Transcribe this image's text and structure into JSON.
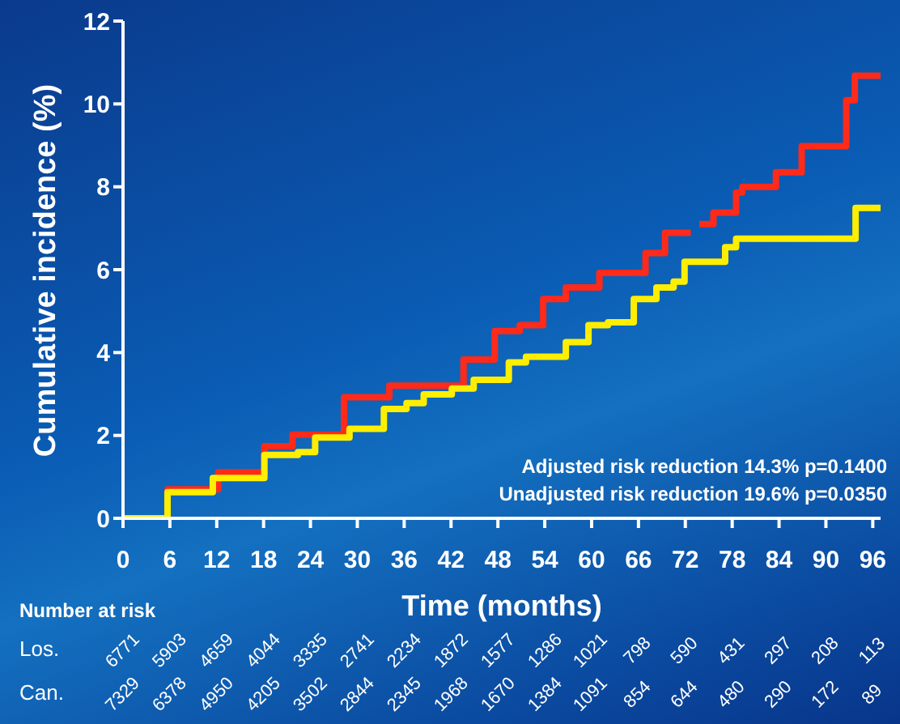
{
  "chart_data": {
    "type": "step",
    "xlabel": "Time (months)",
    "ylabel": "Cumulative incidence (%)",
    "xlim": [
      0,
      97
    ],
    "xticks": [
      0,
      6,
      12,
      18,
      24,
      30,
      36,
      42,
      48,
      54,
      60,
      66,
      72,
      78,
      84,
      90,
      96
    ],
    "ylim": [
      0,
      12
    ],
    "yticks": [
      0,
      2,
      4,
      6,
      8,
      10,
      12
    ],
    "line_style": "solid",
    "marker": "none",
    "series": [
      {
        "color": "#ff2a1a",
        "x": [
          0,
          5.7,
          12.2,
          18.1,
          21.7,
          28.3,
          34.1,
          43.6,
          47.6,
          50.8,
          53.8,
          56.7,
          59.9,
          61.0,
          66.9,
          69.4,
          72.7,
          73.2,
          73.8,
          75.6,
          77.8,
          78.5,
          79.3,
          83.3,
          83.6,
          86.5,
          86.9,
          92.4,
          92.6,
          93.5,
          93.7,
          97
        ],
        "values": [
          0,
          0.7,
          1.11,
          1.74,
          2.02,
          2.92,
          3.2,
          3.83,
          4.52,
          4.66,
          5.29,
          5.57,
          5.57,
          5.92,
          6.4,
          6.89,
          6.89,
          null,
          7.1,
          7.38,
          7.38,
          7.86,
          8.0,
          8.0,
          8.35,
          8.35,
          8.98,
          8.98,
          10.09,
          10.09,
          10.68,
          10.68
        ]
      },
      {
        "color": "#ffee00",
        "x": [
          0,
          5.7,
          11.5,
          18.1,
          22.4,
          24.6,
          29.0,
          33.4,
          36.3,
          38.5,
          42.1,
          44.9,
          47.9,
          49.4,
          51.6,
          53.8,
          56.7,
          59.6,
          62.1,
          65.4,
          68.3,
          70.5,
          71.9,
          75.6,
          77.1,
          78.5,
          93.5,
          93.8,
          97
        ],
        "values": [
          0,
          0.63,
          0.97,
          1.53,
          1.6,
          1.95,
          2.16,
          2.64,
          2.78,
          2.99,
          3.13,
          3.34,
          3.34,
          3.76,
          3.9,
          3.9,
          4.25,
          4.66,
          4.73,
          5.29,
          5.57,
          5.71,
          6.19,
          6.19,
          6.54,
          6.75,
          6.75,
          7.49,
          7.49
        ]
      }
    ],
    "annotations": [
      "Adjusted risk reduction 14.3% p=0.1400",
      "Unadjusted risk reduction 19.6% p=0.0350",
      "Number at risk",
      "Los.",
      "6771",
      "5903",
      "4659",
      "4044",
      "3335",
      "2741",
      "2234",
      "1872",
      "1577",
      "1286",
      "1021",
      "798",
      "590",
      "431",
      "297",
      "208",
      "113",
      "Can.",
      "7329",
      "6378",
      "4950",
      "4205",
      "3502",
      "2844",
      "2345",
      "1968",
      "1670",
      "1384",
      "1091",
      "854",
      "644",
      "480",
      "290",
      "172",
      "89"
    ]
  }
}
